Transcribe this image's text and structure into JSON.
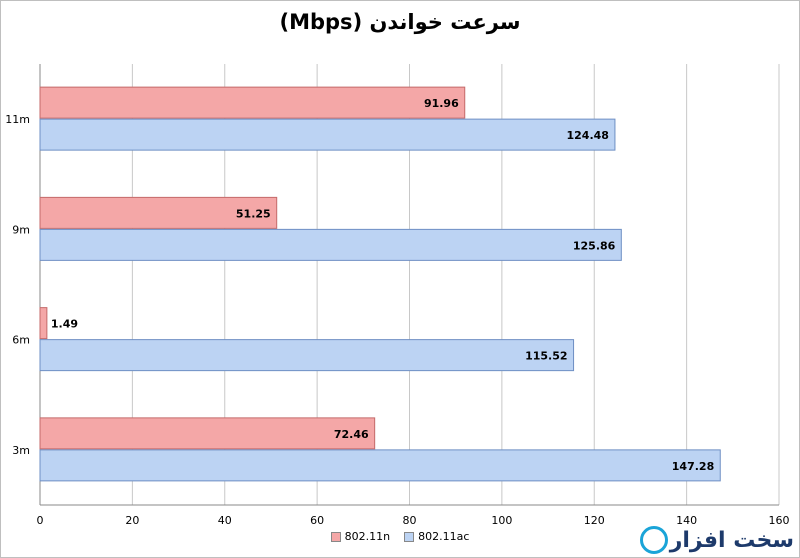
{
  "chart_data": {
    "type": "bar",
    "orientation": "horizontal",
    "title": "سرعت خواندن (Mbps)",
    "categories": [
      "11m",
      "9m",
      "6m",
      "3m"
    ],
    "series": [
      {
        "name": "802.11n",
        "values": [
          91.96,
          51.25,
          1.49,
          72.46
        ],
        "color": "#f4a7a7"
      },
      {
        "name": "802.11ac",
        "values": [
          124.48,
          125.86,
          115.52,
          147.28
        ],
        "color": "#bcd3f3"
      }
    ],
    "xlim": [
      0,
      160
    ],
    "xticks": [
      "0",
      "20",
      "40",
      "60",
      "80",
      "100",
      "120",
      "140",
      "160"
    ],
    "grid": true,
    "legend_position": "bottom"
  },
  "watermark": {
    "text": "سخت افزار"
  }
}
